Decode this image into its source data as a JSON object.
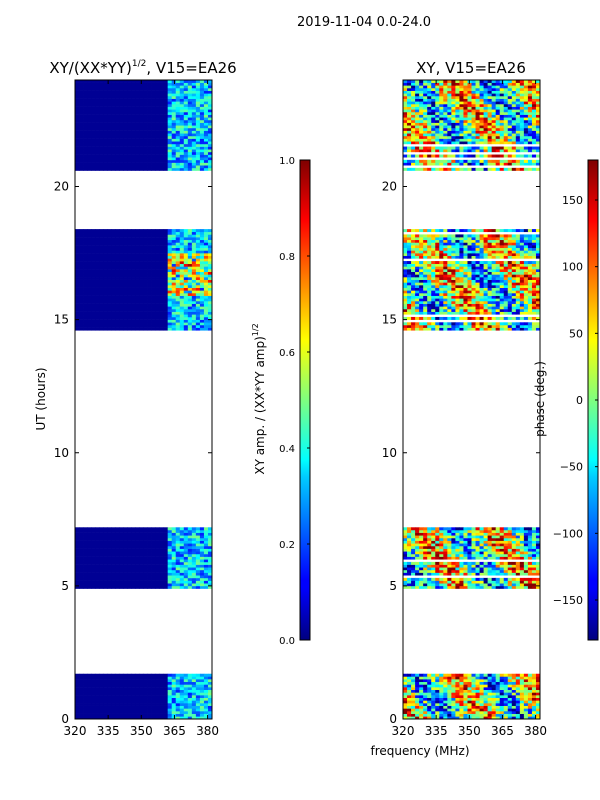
{
  "chart_data": [
    {
      "type": "heatmap",
      "suptitle": "2019-11-04 0.0-24.0",
      "title_main": "XY/(XX*YY)",
      "title_exp": "1/2",
      "title_suffix": ", V15=EA26",
      "ylabel": "UT (hours)",
      "xlim": [
        320,
        382
      ],
      "ylim": [
        0,
        24
      ],
      "x_ticks": [
        "320",
        "335",
        "350",
        "365",
        "380"
      ],
      "x_tick_values": [
        320,
        335,
        350,
        365,
        380
      ],
      "y_ticks": [
        "0",
        "5",
        "10",
        "15",
        "20"
      ],
      "y_tick_values": [
        0,
        5,
        10,
        15,
        20
      ],
      "data_time_ranges_hours": [
        [
          0.0,
          1.7
        ],
        [
          4.9,
          7.2
        ],
        [
          14.6,
          18.4
        ],
        [
          20.6,
          24.0
        ]
      ],
      "colorbar": {
        "label_main": "XY amp. / (XX*YY amp)",
        "label_exp": "1/2",
        "ticks": [
          "0.0",
          "0.2",
          "0.4",
          "0.6",
          "0.8",
          "1.0"
        ],
        "tick_values": [
          0.0,
          0.2,
          0.4,
          0.6,
          0.8,
          1.0
        ],
        "range": [
          0.0,
          1.0
        ],
        "cmap": "jet"
      }
    },
    {
      "type": "heatmap",
      "title": "XY, V15=EA26",
      "xlabel": "frequency (MHz)",
      "xlim": [
        320,
        382
      ],
      "ylim": [
        0,
        24
      ],
      "x_ticks": [
        "320",
        "335",
        "350",
        "365",
        "380"
      ],
      "x_tick_values": [
        320,
        335,
        350,
        365,
        380
      ],
      "y_ticks": [
        "0",
        "5",
        "10",
        "15",
        "20"
      ],
      "y_tick_values": [
        0,
        5,
        10,
        15,
        20
      ],
      "data_time_ranges_hours": [
        [
          0.0,
          1.7
        ],
        [
          4.9,
          7.2
        ],
        [
          14.6,
          18.4
        ],
        [
          20.6,
          24.0
        ]
      ],
      "colorbar": {
        "label": "phase (deg.)",
        "ticks": [
          "−150",
          "−100",
          "−50",
          "0",
          "50",
          "100",
          "150"
        ],
        "tick_values": [
          -150,
          -100,
          -50,
          0,
          50,
          100,
          150
        ],
        "range": [
          -180,
          180
        ],
        "cmap": "jet"
      }
    }
  ]
}
